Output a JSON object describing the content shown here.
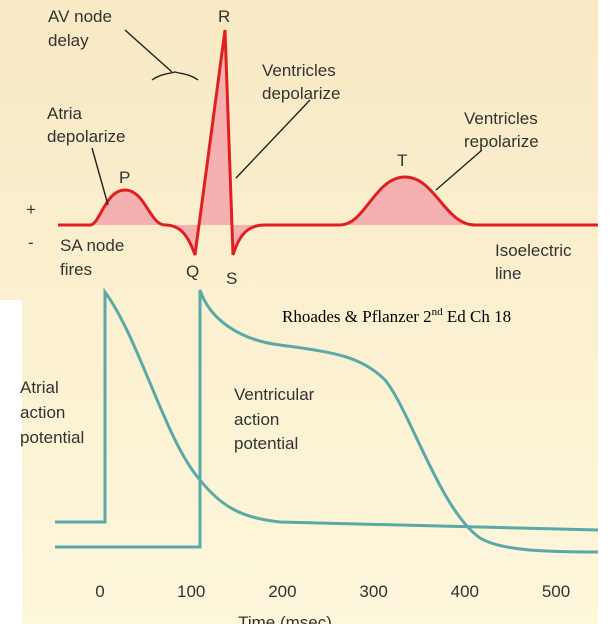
{
  "labels": {
    "av_node_delay": [
      "AV node",
      "delay"
    ],
    "r": "R",
    "ventricles_depolarize": [
      "Ventricles",
      "depolarize"
    ],
    "atria_depolarize": [
      "Atria",
      "depolarize"
    ],
    "p": "P",
    "t": "T",
    "ventricles_repolarize": [
      "Ventricles",
      "repolarize"
    ],
    "plus": "+",
    "minus": "-",
    "sa_node_fires": [
      "SA node",
      "fires"
    ],
    "q": "Q",
    "s": "S",
    "isoelectric_line": [
      "Isoelectric",
      "line"
    ],
    "atrial_action_potential": [
      "Atrial",
      "action",
      "potential"
    ],
    "ventricular_action_potential": [
      "Ventricular",
      "action",
      "potential"
    ]
  },
  "citation": {
    "before": "Rhoades & Pflanzer 2",
    "sup": "nd",
    "after": " Ed Ch 18"
  },
  "axis": {
    "ticks": [
      0,
      100,
      200,
      300,
      400,
      500
    ],
    "label": "Time (msec)"
  }
}
